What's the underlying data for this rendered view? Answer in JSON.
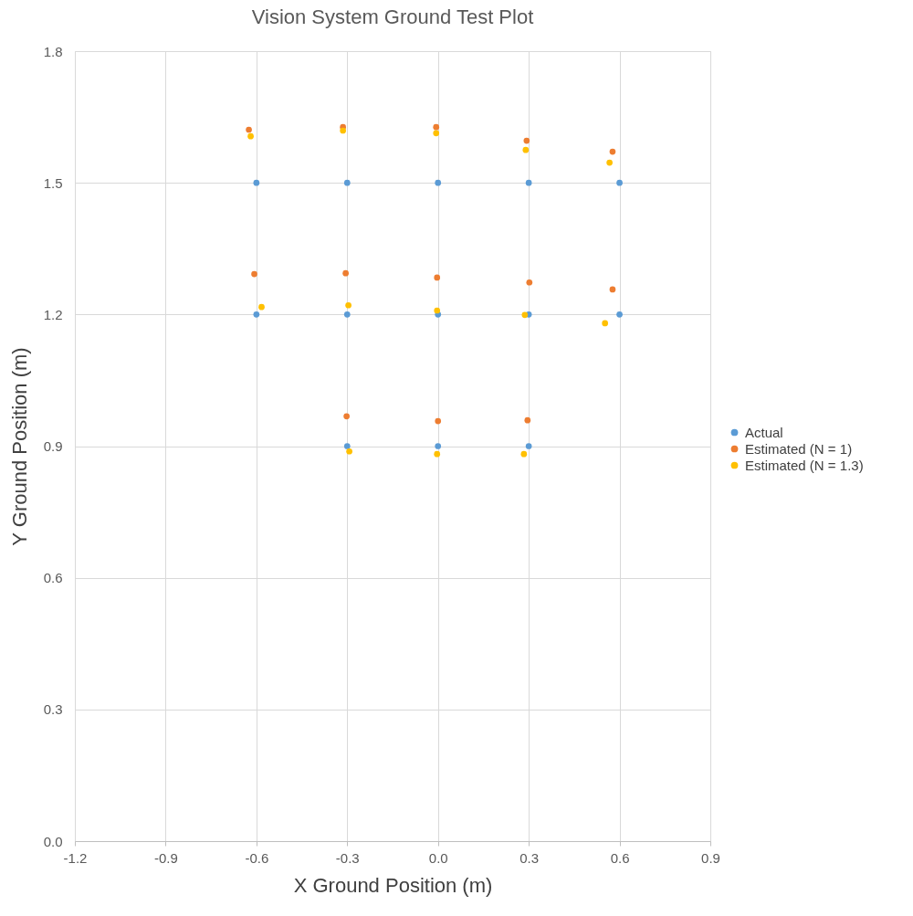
{
  "chart_data": {
    "type": "scatter",
    "title": "Vision System Ground Test Plot",
    "xlabel": "X Ground Position (m)",
    "ylabel": "Y Ground Position (m)",
    "xlim": [
      -1.2,
      0.9
    ],
    "xticks": [
      -1.2,
      -0.9,
      -0.6,
      -0.3,
      {
        "value": 0,
        "label": "0.0"
      },
      0.3,
      0.6,
      0.9
    ],
    "ylim": [
      0,
      1.8
    ],
    "yticks": [
      {
        "value": 0,
        "label": "0.0"
      },
      0.3,
      0.6,
      0.9,
      1.2,
      1.5,
      1.8
    ],
    "grid": true,
    "legend": "right",
    "marker": "circle",
    "series": [
      {
        "name": "Actual",
        "color": "#5b9bd5",
        "x": [
          -0.6,
          -0.3,
          0.0,
          0.3,
          0.6,
          -0.6,
          -0.3,
          0.0,
          0.3,
          0.6,
          -0.3,
          0.0,
          0.3
        ],
        "values": [
          1.5,
          1.5,
          1.5,
          1.5,
          1.5,
          1.2,
          1.2,
          1.2,
          1.2,
          1.2,
          0.9,
          0.9,
          0.9
        ]
      },
      {
        "name": "Estimated (N = 1)",
        "color": "#ed7d31",
        "x": [
          -0.625,
          -0.314,
          -0.006,
          0.293,
          0.577,
          -0.607,
          -0.305,
          -0.003,
          0.302,
          0.577,
          -0.302,
          0.0,
          0.296
        ],
        "values": [
          1.621,
          1.627,
          1.627,
          1.596,
          1.571,
          1.292,
          1.294,
          1.284,
          1.273,
          1.257,
          0.968,
          0.957,
          0.959
        ]
      },
      {
        "name": "Estimated (N = 1.3)",
        "color": "#ffc000",
        "x": [
          -0.619,
          -0.314,
          -0.006,
          0.29,
          0.567,
          -0.583,
          -0.296,
          -0.003,
          0.287,
          0.552,
          -0.293,
          -0.003,
          0.284
        ],
        "values": [
          1.606,
          1.619,
          1.613,
          1.575,
          1.546,
          1.217,
          1.221,
          1.209,
          1.199,
          1.18,
          0.888,
          0.882,
          0.882
        ]
      }
    ]
  }
}
